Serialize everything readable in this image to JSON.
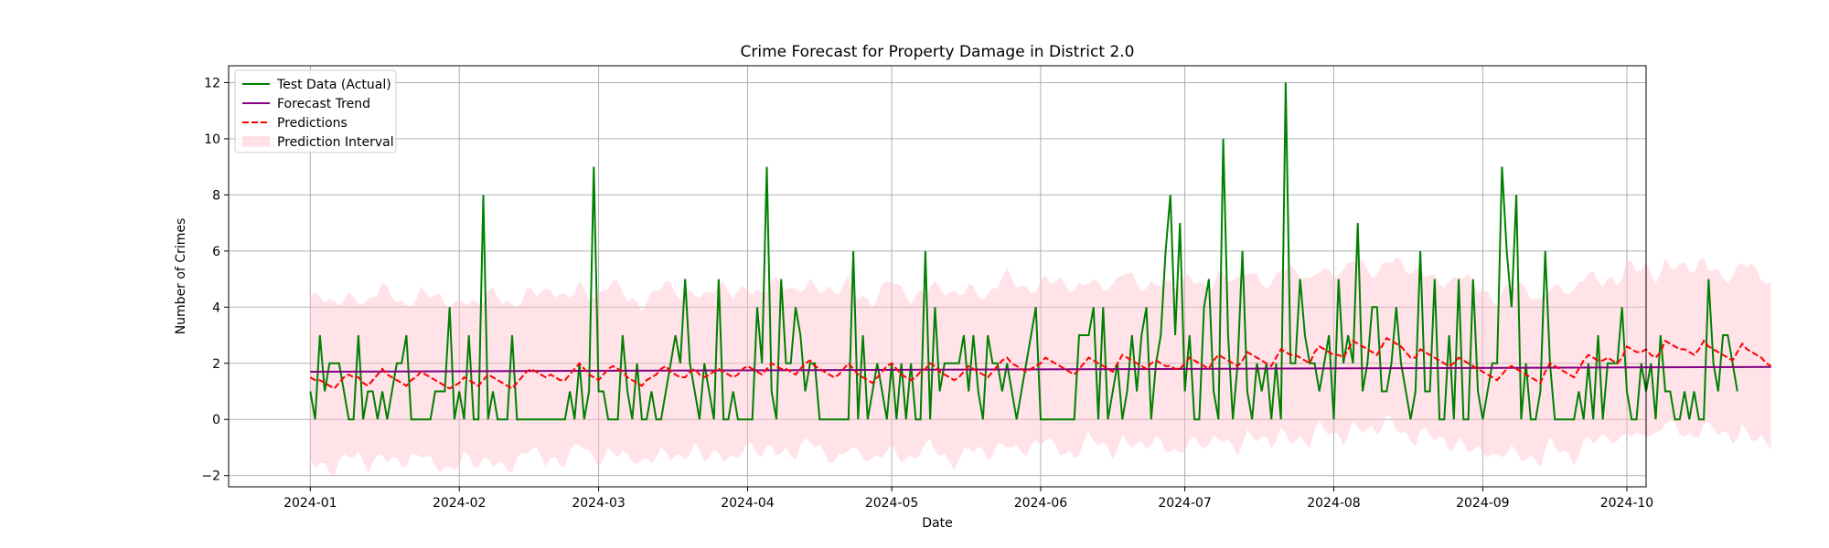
{
  "chart_data": {
    "type": "line",
    "title": "Crime Forecast for Property Damage in District 2.0",
    "xlabel": "Date",
    "ylabel": "Number of Crimes",
    "x_start": "2024-01-01",
    "x_ticks": [
      "2024-01",
      "2024-02",
      "2024-03",
      "2024-04",
      "2024-05",
      "2024-06",
      "2024-07",
      "2024-08",
      "2024-09",
      "2024-10"
    ],
    "xlim": [
      "2023-12-15",
      "2024-10-05"
    ],
    "y_ticks": [
      -2,
      0,
      2,
      4,
      6,
      8,
      10,
      12
    ],
    "ylim": [
      -2.4,
      12.6
    ],
    "grid": true,
    "legend_position": "top-left",
    "colors": {
      "actual": "#008000",
      "trend": "#800080",
      "predictions": "#ff0000",
      "interval": "#ffc0cb"
    },
    "series": [
      {
        "name": "Test Data (Actual)",
        "style": "solid",
        "values": [
          1,
          0,
          3,
          1,
          2,
          2,
          2,
          1,
          0,
          0,
          3,
          0,
          1,
          1,
          0,
          1,
          0,
          1,
          2,
          2,
          3,
          0,
          0,
          0,
          0,
          0,
          1,
          1,
          1,
          4,
          0,
          1,
          0,
          3,
          0,
          0,
          8,
          0,
          1,
          0,
          0,
          0,
          3,
          0,
          0,
          0,
          0,
          0,
          0,
          0,
          0,
          0,
          0,
          0,
          1,
          0,
          2,
          0,
          1,
          9,
          1,
          1,
          0,
          0,
          0,
          3,
          1,
          0,
          2,
          0,
          0,
          1,
          0,
          0,
          1,
          2,
          3,
          2,
          5,
          2,
          1,
          0,
          2,
          1,
          0,
          5,
          0,
          0,
          1,
          0,
          0,
          0,
          0,
          4,
          2,
          9,
          1,
          0,
          5,
          2,
          2,
          4,
          3,
          1,
          2,
          2,
          0,
          0,
          0,
          0,
          0,
          0,
          0,
          6,
          0,
          3,
          0,
          1,
          2,
          1,
          0,
          2,
          0,
          2,
          0,
          2,
          0,
          0,
          6,
          0,
          4,
          1,
          2,
          2,
          2,
          2,
          3,
          1,
          3,
          1,
          0,
          3,
          2,
          2,
          1,
          2,
          1,
          0,
          1,
          2,
          3,
          4,
          0,
          0,
          0,
          0,
          0,
          0,
          0,
          0,
          3,
          3,
          3,
          4,
          0,
          4,
          0,
          1,
          2,
          0,
          1,
          3,
          1,
          3,
          4,
          0,
          2,
          3,
          6,
          8,
          3,
          7,
          1,
          3,
          0,
          0,
          4,
          5,
          1,
          0,
          10,
          3,
          0,
          2,
          6,
          1,
          0,
          2,
          1,
          2,
          0,
          2,
          0,
          12,
          2,
          2,
          5,
          3,
          2,
          2,
          1,
          2,
          3,
          0,
          5,
          2,
          3,
          2,
          7,
          1,
          2,
          4,
          4,
          1,
          1,
          2,
          4,
          2,
          1,
          0,
          1,
          6,
          1,
          1,
          5,
          0,
          0,
          3,
          0,
          5,
          0,
          0,
          5,
          1,
          0,
          1,
          2,
          2,
          9,
          6,
          4,
          8,
          0,
          2,
          0,
          0,
          1,
          6,
          2,
          0,
          0,
          0,
          0,
          0,
          1,
          0,
          2,
          0,
          3,
          0,
          2,
          2,
          2,
          4,
          1,
          0,
          0,
          2,
          1,
          2,
          0,
          3,
          1,
          1,
          0,
          0,
          1,
          0,
          1,
          0,
          0,
          5,
          2,
          1,
          3,
          3,
          2,
          1
        ]
      },
      {
        "name": "Forecast Trend",
        "style": "solid",
        "start": 1.7,
        "end": 1.87
      },
      {
        "name": "Predictions",
        "style": "dashed",
        "values": [
          1.5,
          1.4,
          1.4,
          1.3,
          1.2,
          1.1,
          1.3,
          1.5,
          1.6,
          1.5,
          1.5,
          1.3,
          1.2,
          1.4,
          1.6,
          1.8,
          1.6,
          1.5,
          1.4,
          1.3,
          1.2,
          1.4,
          1.5,
          1.7,
          1.6,
          1.5,
          1.4,
          1.3,
          1.2,
          1.1,
          1.2,
          1.3,
          1.5,
          1.4,
          1.3,
          1.2,
          1.4,
          1.6,
          1.5,
          1.4,
          1.3,
          1.2,
          1.1,
          1.3,
          1.5,
          1.7,
          1.8,
          1.7,
          1.6,
          1.5,
          1.6,
          1.5,
          1.4,
          1.4,
          1.6,
          1.8,
          2.0,
          1.8,
          1.6,
          1.5,
          1.4,
          1.6,
          1.8,
          1.9,
          1.8,
          1.7,
          1.5,
          1.4,
          1.3,
          1.2,
          1.4,
          1.5,
          1.6,
          1.8,
          1.9,
          1.7,
          1.6,
          1.5,
          1.5,
          1.7,
          1.8,
          1.6,
          1.5,
          1.6,
          1.7,
          1.8,
          1.7,
          1.6,
          1.5,
          1.6,
          1.8,
          1.9,
          1.8,
          1.7,
          1.6,
          1.8,
          2.0,
          1.9,
          1.8,
          1.8,
          1.7,
          1.6,
          1.8,
          2.0,
          2.1,
          1.9,
          1.8,
          1.7,
          1.6,
          1.5,
          1.6,
          1.8,
          2.0,
          1.8,
          1.6,
          1.5,
          1.4,
          1.3,
          1.5,
          1.7,
          1.9,
          2.0,
          1.8,
          1.6,
          1.5,
          1.4,
          1.5,
          1.7,
          1.8,
          2.0,
          1.9,
          1.7,
          1.6,
          1.5,
          1.4,
          1.5,
          1.7,
          1.9,
          1.8,
          1.7,
          1.6,
          1.5,
          1.7,
          1.9,
          2.1,
          2.2,
          2.0,
          1.9,
          1.8,
          1.7,
          1.8,
          1.9,
          2.0,
          2.2,
          2.1,
          2.0,
          1.9,
          1.8,
          1.7,
          1.6,
          1.8,
          2.0,
          2.2,
          2.1,
          2.0,
          1.9,
          1.8,
          1.7,
          2.0,
          2.3,
          2.2,
          2.1,
          2.0,
          1.9,
          1.8,
          2.0,
          2.1,
          2.0,
          1.9,
          1.9,
          1.8,
          1.8,
          2.0,
          2.2,
          2.1,
          2.0,
          1.9,
          1.8,
          2.1,
          2.3,
          2.2,
          2.1,
          2.0,
          1.9,
          2.1,
          2.4,
          2.3,
          2.2,
          2.1,
          2.0,
          1.9,
          2.2,
          2.5,
          2.4,
          2.3,
          2.3,
          2.2,
          2.1,
          2.0,
          2.4,
          2.6,
          2.5,
          2.4,
          2.3,
          2.3,
          2.2,
          2.5,
          2.8,
          2.7,
          2.6,
          2.5,
          2.4,
          2.3,
          2.6,
          2.9,
          2.8,
          2.7,
          2.6,
          2.4,
          2.2,
          2.2,
          2.5,
          2.4,
          2.3,
          2.2,
          2.1,
          2.0,
          1.9,
          2.0,
          2.2,
          2.1,
          2.0,
          1.9,
          1.8,
          1.7,
          1.6,
          1.5,
          1.4,
          1.6,
          1.8,
          1.9,
          1.8,
          1.7,
          1.6,
          1.5,
          1.4,
          1.3,
          1.7,
          2.0,
          1.9,
          1.8,
          1.7,
          1.6,
          1.5,
          1.8,
          2.1,
          2.3,
          2.2,
          2.1,
          2.1,
          2.2,
          2.1,
          2.0,
          2.2,
          2.6,
          2.5,
          2.4,
          2.4,
          2.5,
          2.3,
          2.2,
          2.4,
          2.8,
          2.7,
          2.6,
          2.5,
          2.5,
          2.4,
          2.3,
          2.5,
          2.8,
          2.6,
          2.5,
          2.4,
          2.3,
          2.2,
          2.1,
          2.4,
          2.7,
          2.5,
          2.4,
          2.3,
          2.2,
          2.0,
          1.9
        ]
      }
    ],
    "band": {
      "name": "Prediction Interval",
      "lower_offset": -2.9,
      "upper_offset": 2.9
    }
  }
}
